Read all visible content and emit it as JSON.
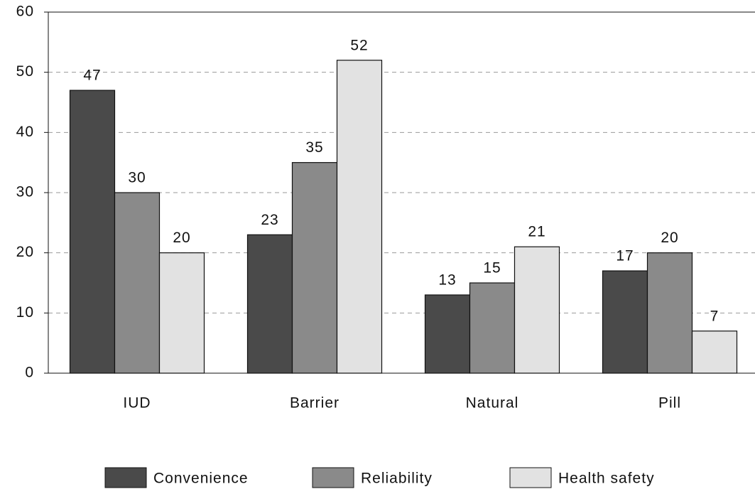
{
  "chart_data": {
    "type": "bar",
    "categories": [
      "IUD",
      "Barrier",
      "Natural",
      "Pill"
    ],
    "series": [
      {
        "name": "Convenience",
        "color": "#4a4a4a",
        "values": [
          47,
          23,
          13,
          17
        ]
      },
      {
        "name": "Reliability",
        "color": "#8a8a8a",
        "values": [
          30,
          35,
          15,
          20
        ]
      },
      {
        "name": "Health safety",
        "color": "#e2e2e2",
        "values": [
          20,
          52,
          21,
          7
        ]
      }
    ],
    "ylim": [
      0,
      60
    ],
    "yticks": [
      0,
      10,
      20,
      30,
      40,
      50,
      60
    ],
    "grid": true,
    "legend": "bottom"
  }
}
